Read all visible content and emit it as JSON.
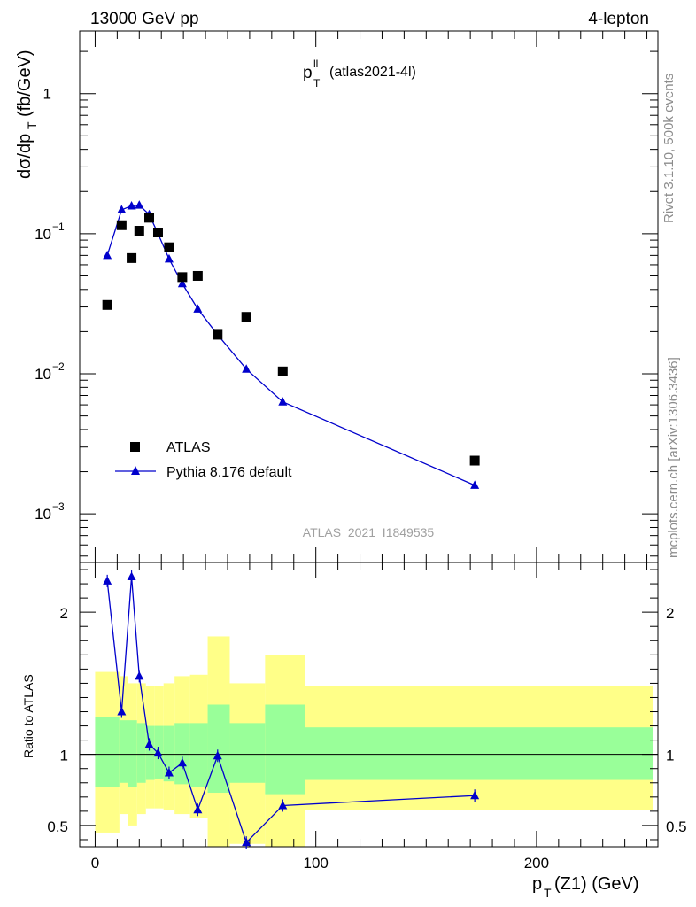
{
  "header": {
    "left": "13000 GeV pp",
    "right": "4-lepton"
  },
  "side_labels": {
    "rivet": "Rivet 3.1.10,  500k events",
    "mcplots": "mcplots.cern.ch [arXiv:1306.3436]"
  },
  "plot_title": {
    "main": "p",
    "sup": "ll",
    "sub": "T",
    "suffix": "(atlas2021-4l)"
  },
  "watermark": "ATLAS_2021_I1849535",
  "legend": {
    "data": "ATLAS",
    "mc": "Pythia 8.176 default"
  },
  "colors": {
    "data": "#000000",
    "mc": "#0000cc",
    "band_inner": "#99ff99",
    "band_outer": "#ffff88",
    "side_text": "#8c8c8c"
  },
  "chart_data": [
    {
      "type": "scatter",
      "panel": "main",
      "ylabel": "dσ/dp_T (fb/GeV)",
      "yscale": "log",
      "ylim": [
        0.00045,
        2.8
      ],
      "xlim": [
        -7,
        255
      ],
      "ytick_labels": [
        "1",
        "10",
        "10",
        "10"
      ],
      "ytick_exponents": [
        "",
        "−1",
        "−2",
        "−3"
      ],
      "series": [
        {
          "name": "ATLAS",
          "marker": "square",
          "x": [
            5.5,
            12,
            16.5,
            20,
            24.5,
            28.5,
            33.5,
            39.5,
            46.5,
            55.5,
            68.5,
            85,
            172
          ],
          "y": [
            0.031,
            0.115,
            0.067,
            0.105,
            0.13,
            0.102,
            0.08,
            0.049,
            0.05,
            0.019,
            0.0255,
            0.0104,
            0.0024
          ]
        },
        {
          "name": "Pythia 8.176 default",
          "marker": "triangle",
          "x": [
            5.5,
            12,
            16.5,
            20,
            24.5,
            28.5,
            33.5,
            39.5,
            46.5,
            55.5,
            68.5,
            85,
            172
          ],
          "y": [
            0.07,
            0.148,
            0.158,
            0.16,
            0.137,
            0.1,
            0.066,
            0.044,
            0.029,
            0.019,
            0.0108,
            0.0063,
            0.0016
          ]
        }
      ]
    },
    {
      "type": "line",
      "panel": "ratio",
      "ylabel": "Ratio to ATLAS",
      "xlabel": "p_T(Z1) (GeV)",
      "ylim": [
        0.35,
        2.35
      ],
      "xlim": [
        -7,
        255
      ],
      "yticks": [
        0.5,
        1,
        2
      ],
      "ytick_labels": [
        "0.5",
        "1",
        "2"
      ],
      "xticks": [
        0,
        100,
        200
      ],
      "xtick_labels": [
        "0",
        "100",
        "200"
      ],
      "reference_line": 1,
      "bands": {
        "edges": [
          0,
          11,
          15,
          19,
          23,
          27,
          31,
          36,
          43,
          51,
          61,
          77,
          95,
          253
        ],
        "inner_lo": [
          0.77,
          0.8,
          0.77,
          0.8,
          0.82,
          0.83,
          0.81,
          0.79,
          0.77,
          0.73,
          0.8,
          0.72,
          0.82
        ],
        "inner_hi": [
          1.26,
          1.24,
          1.24,
          1.22,
          1.2,
          1.2,
          1.2,
          1.22,
          1.22,
          1.35,
          1.22,
          1.35,
          1.19
        ],
        "outer_lo": [
          0.45,
          0.58,
          0.5,
          0.58,
          0.62,
          0.62,
          0.61,
          0.58,
          0.55,
          0.3,
          0.37,
          0.3,
          0.61
        ],
        "outer_hi": [
          1.58,
          1.55,
          1.5,
          1.5,
          1.48,
          1.48,
          1.5,
          1.55,
          1.56,
          1.83,
          1.5,
          1.7,
          1.48
        ]
      },
      "series": [
        {
          "name": "Pythia 8.176 default",
          "x": [
            5.5,
            12,
            16.5,
            20,
            24.5,
            28.5,
            33.5,
            39.5,
            46.5,
            55.5,
            68.5,
            85,
            172
          ],
          "y": [
            2.22,
            1.3,
            2.25,
            1.55,
            1.07,
            1.01,
            0.87,
            0.94,
            0.61,
            0.99,
            0.38,
            0.64,
            0.71
          ]
        }
      ]
    }
  ]
}
